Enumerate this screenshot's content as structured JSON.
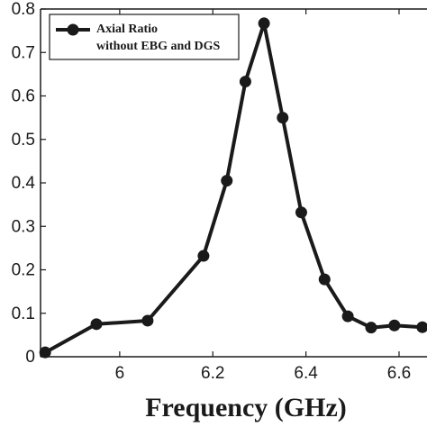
{
  "chart_data": {
    "type": "line",
    "xlabel": "Frequency (GHz)",
    "xlim": [
      5.83,
      6.66
    ],
    "ylim": [
      0,
      0.8
    ],
    "x_ticks": [
      6,
      6.2,
      6.4,
      6.6
    ],
    "x_tick_labels": [
      "6",
      "6.2",
      "6.4",
      "6.6"
    ],
    "y_ticks": [
      0,
      0.1,
      0.2,
      0.3,
      0.4,
      0.5,
      0.6,
      0.7,
      0.8
    ],
    "y_tick_labels": [
      "0",
      "0.1",
      "0.2",
      "0.3",
      "0.4",
      "0.5",
      "0.6",
      "0.7",
      "0.8"
    ],
    "legend_position": "top-left",
    "grid": false,
    "series": [
      {
        "name": "Axial Ratio\nwithout EBG and DGS",
        "legend_lines": [
          "Axial Ratio",
          "without EBG and DGS"
        ],
        "color": "#1a1a1a",
        "marker": "circle",
        "x": [
          5.84,
          5.95,
          6.06,
          6.18,
          6.23,
          6.27,
          6.31,
          6.35,
          6.39,
          6.44,
          6.49,
          6.54,
          6.59,
          6.65
        ],
        "y": [
          0.01,
          0.075,
          0.083,
          0.232,
          0.405,
          0.633,
          0.767,
          0.55,
          0.332,
          0.178,
          0.093,
          0.067,
          0.072,
          0.068
        ]
      }
    ]
  }
}
